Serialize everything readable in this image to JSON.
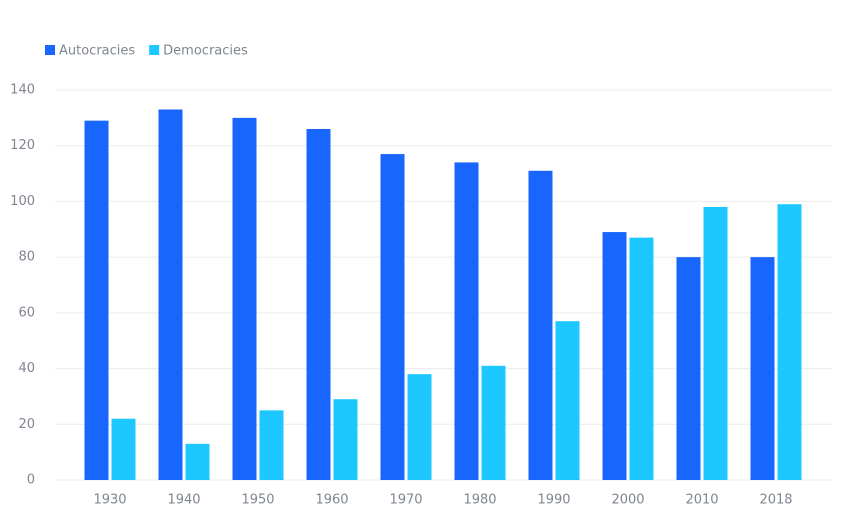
{
  "chart_data": {
    "type": "bar",
    "categories": [
      "1930",
      "1940",
      "1950",
      "1960",
      "1970",
      "1980",
      "1990",
      "2000",
      "2010",
      "2018"
    ],
    "series": [
      {
        "name": "Autocracies",
        "color": "#1966ff",
        "values": [
          129,
          133,
          130,
          126,
          117,
          114,
          111,
          89,
          80,
          80
        ]
      },
      {
        "name": "Democracies",
        "color": "#1cc8ff",
        "values": [
          22,
          13,
          25,
          29,
          38,
          41,
          57,
          87,
          98,
          99
        ]
      }
    ],
    "ylim": [
      0,
      140
    ],
    "yticks": [
      0,
      20,
      40,
      60,
      80,
      100,
      120,
      140
    ],
    "grid": true,
    "legend": "top-left"
  }
}
